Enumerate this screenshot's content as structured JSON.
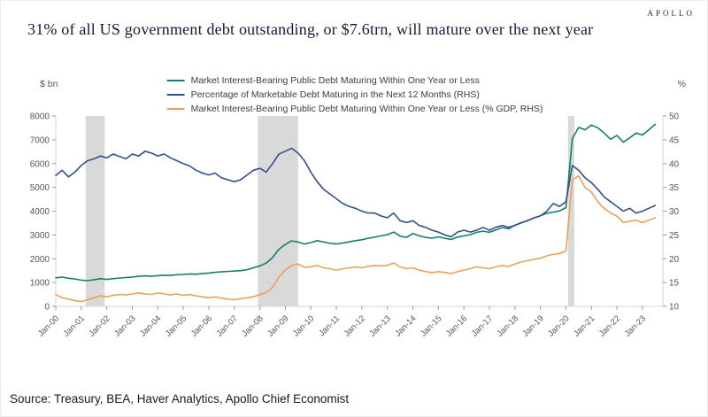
{
  "header": {
    "logo": "APOLLO",
    "title": "31% of all US government debt outstanding, or $7.6trn, will mature over the next year"
  },
  "source": "Source: Treasury, BEA, Haver Analytics, Apollo Chief Economist",
  "chart_data": {
    "type": "line",
    "title": "31% of all US government debt outstanding, or $7.6trn, will mature over the next year",
    "left_axis": {
      "label": "$ bn",
      "min": 0,
      "max": 8000,
      "tick_step": 1000
    },
    "right_axis": {
      "label": "%",
      "min": 10,
      "max": 50,
      "tick_step": 5
    },
    "x_range": [
      2000,
      2023.8
    ],
    "x_start": 2000,
    "x_step": 0.25,
    "x_tick_labels": [
      "Jan-00",
      "Jan-01",
      "Jan-02",
      "Jan-03",
      "Jan-04",
      "Jan-05",
      "Jan-06",
      "Jan-07",
      "Jan-08",
      "Jan-09",
      "Jan-10",
      "Jan-11",
      "Jan-12",
      "Jan-13",
      "Jan-14",
      "Jan-15",
      "Jan-16",
      "Jan-17",
      "Jan-18",
      "Jan-19",
      "Jan-20",
      "Jan-21",
      "Jan-22",
      "Jan-23"
    ],
    "recession_bands": [
      [
        2001.17,
        2001.92
      ],
      [
        2007.92,
        2009.5
      ],
      [
        2020.08,
        2020.33
      ]
    ],
    "recession_band_color": "#d9d9d9",
    "legend_position": "top-center",
    "grid": false,
    "series": [
      {
        "name": "Market Interest-Bearing Public Debt Maturing Within One Year or Less",
        "axis": "left",
        "color": "#177d6b",
        "values": [
          1200,
          1230,
          1180,
          1150,
          1100,
          1080,
          1120,
          1160,
          1130,
          1160,
          1190,
          1210,
          1230,
          1260,
          1280,
          1260,
          1290,
          1310,
          1300,
          1330,
          1340,
          1360,
          1350,
          1380,
          1400,
          1430,
          1450,
          1470,
          1480,
          1500,
          1540,
          1620,
          1700,
          1820,
          2050,
          2400,
          2600,
          2750,
          2700,
          2620,
          2680,
          2760,
          2700,
          2650,
          2620,
          2660,
          2710,
          2760,
          2800,
          2860,
          2910,
          2960,
          3010,
          3120,
          2950,
          2900,
          3060,
          2960,
          2900,
          2860,
          2920,
          2860,
          2810,
          2910,
          2960,
          3010,
          3110,
          3160,
          3110,
          3210,
          3310,
          3260,
          3410,
          3510,
          3610,
          3710,
          3810,
          3910,
          3960,
          4010,
          4150,
          7050,
          7520,
          7420,
          7620,
          7500,
          7280,
          7020,
          7180,
          6900,
          7080,
          7280,
          7200,
          7420,
          7650
        ]
      },
      {
        "name": "Percentage of Marketable Debt Maturing in the Next 12 Months (RHS)",
        "axis": "right",
        "color": "#34508a",
        "values": [
          37.5,
          38.6,
          37.2,
          38.2,
          39.6,
          40.6,
          41.0,
          41.6,
          41.2,
          42.0,
          41.5,
          41.0,
          42.0,
          41.6,
          42.6,
          42.2,
          41.6,
          42.0,
          41.2,
          40.6,
          40.0,
          39.5,
          38.6,
          38.0,
          37.6,
          38.0,
          37.0,
          36.6,
          36.2,
          36.6,
          37.6,
          38.6,
          39.0,
          38.2,
          40.0,
          42.0,
          42.6,
          43.2,
          42.2,
          40.6,
          38.2,
          36.2,
          34.6,
          33.6,
          32.6,
          31.6,
          31.0,
          30.6,
          30.0,
          29.6,
          29.6,
          29.0,
          28.6,
          29.6,
          28.0,
          27.6,
          28.0,
          27.0,
          26.6,
          26.0,
          25.6,
          25.0,
          24.6,
          25.6,
          26.0,
          25.6,
          26.0,
          26.6,
          26.0,
          26.6,
          27.0,
          26.6,
          27.0,
          27.6,
          28.0,
          28.6,
          29.0,
          30.0,
          31.6,
          31.0,
          32.0,
          39.6,
          38.6,
          37.0,
          36.0,
          34.6,
          33.0,
          32.0,
          31.0,
          30.0,
          30.6,
          29.6,
          30.0,
          30.6,
          31.2
        ]
      },
      {
        "name": "Market Interest-Bearing Public Debt Maturing Within One Year or Less (% GDP, RHS)",
        "axis": "right",
        "color": "#e8a05f",
        "values": [
          12.5,
          11.8,
          11.5,
          11.2,
          11.0,
          11.4,
          11.8,
          12.2,
          12.0,
          12.3,
          12.5,
          12.4,
          12.6,
          12.8,
          12.6,
          12.5,
          12.8,
          12.6,
          12.4,
          12.6,
          12.3,
          12.5,
          12.2,
          12.0,
          11.8,
          12.0,
          11.7,
          11.5,
          11.4,
          11.6,
          11.8,
          12.0,
          12.5,
          12.9,
          14.0,
          16.2,
          17.6,
          18.6,
          18.9,
          18.2,
          18.3,
          18.6,
          18.1,
          17.9,
          17.6,
          17.9,
          18.1,
          18.3,
          18.1,
          18.4,
          18.6,
          18.5,
          18.6,
          19.1,
          18.3,
          17.9,
          18.1,
          17.6,
          17.3,
          17.1,
          17.3,
          17.1,
          16.9,
          17.3,
          17.6,
          17.9,
          18.3,
          18.1,
          17.9,
          18.3,
          18.6,
          18.4,
          18.9,
          19.3,
          19.6,
          19.9,
          20.1,
          20.6,
          20.9,
          21.1,
          21.6,
          36.6,
          37.4,
          35.0,
          34.0,
          32.0,
          30.6,
          29.6,
          29.0,
          27.6,
          27.9,
          28.1,
          27.6,
          28.1,
          28.6
        ]
      }
    ]
  }
}
